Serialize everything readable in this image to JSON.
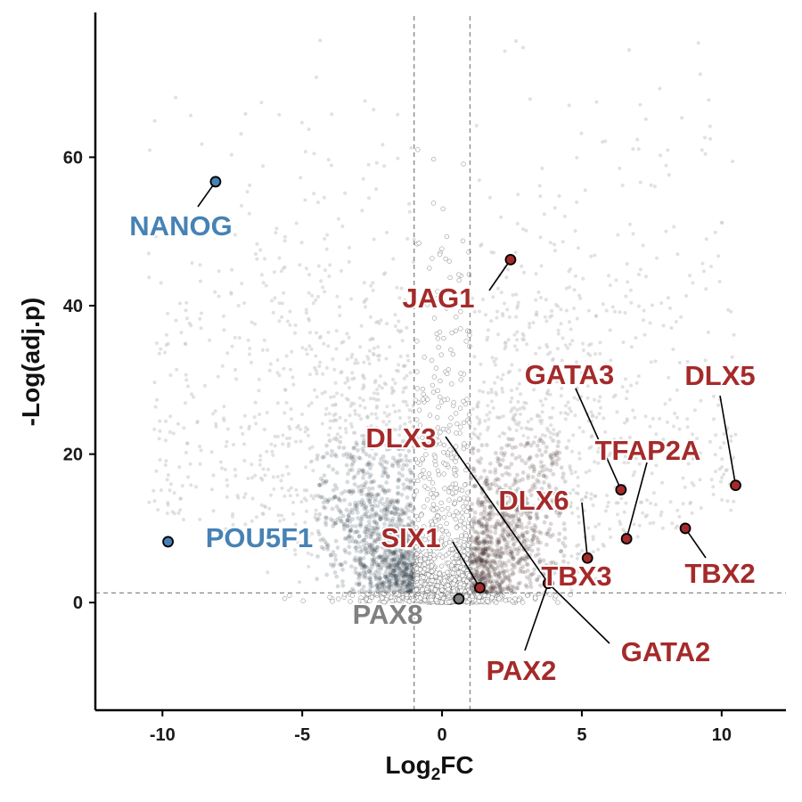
{
  "chart_data": {
    "type": "scatter",
    "subtype": "volcano",
    "xlabel_main": "Log",
    "xlabel_sub": "2",
    "xlabel_tail": "FC",
    "ylabel": "-Log(adj.p)",
    "xlim": [
      -12.4,
      12.3
    ],
    "ylim": [
      -14.5,
      79.5
    ],
    "xticks": [
      -10,
      -5,
      0,
      5,
      10
    ],
    "yticks": [
      0,
      20,
      40,
      60
    ],
    "thresholds": {
      "log2fc": [
        -1,
        1
      ],
      "neg_log_adj_p": 1.3
    },
    "grid": false,
    "legend": "none",
    "colors": {
      "up": "#a52a2a",
      "down": "#4682b4",
      "neutral": "#808080",
      "background_point": "#c8c8c8",
      "dark_up": "#3a2020",
      "dark_down": "#20303e",
      "threshold_line": "#888888"
    },
    "highlighted_genes": [
      {
        "gene": "NANOG",
        "x": -8.1,
        "y": 56.7,
        "group": "down"
      },
      {
        "gene": "POU5F1",
        "x": -9.8,
        "y": 8.2,
        "group": "down"
      },
      {
        "gene": "PAX8",
        "x": 0.6,
        "y": 0.5,
        "group": "neutral"
      },
      {
        "gene": "JAG1",
        "x": 2.45,
        "y": 46.2,
        "group": "up"
      },
      {
        "gene": "DLX3",
        "x": 3.8,
        "y": 2.6,
        "group": "up"
      },
      {
        "gene": "SIX1",
        "x": 1.35,
        "y": 2.0,
        "group": "up"
      },
      {
        "gene": "DLX6",
        "x": 5.2,
        "y": 6.0,
        "group": "up"
      },
      {
        "gene": "TBX3",
        "x": 5.2,
        "y": 6.0,
        "group": "up"
      },
      {
        "gene": "GATA2",
        "x": 3.8,
        "y": 2.6,
        "group": "up"
      },
      {
        "gene": "PAX2",
        "x": 3.8,
        "y": 2.6,
        "group": "up"
      },
      {
        "gene": "GATA3",
        "x": 6.4,
        "y": 15.2,
        "group": "up"
      },
      {
        "gene": "TFAP2A",
        "x": 6.6,
        "y": 8.6,
        "group": "up"
      },
      {
        "gene": "DLX5",
        "x": 10.5,
        "y": 15.8,
        "group": "up"
      },
      {
        "gene": "TBX2",
        "x": 8.7,
        "y": 10.0,
        "group": "up"
      }
    ]
  }
}
